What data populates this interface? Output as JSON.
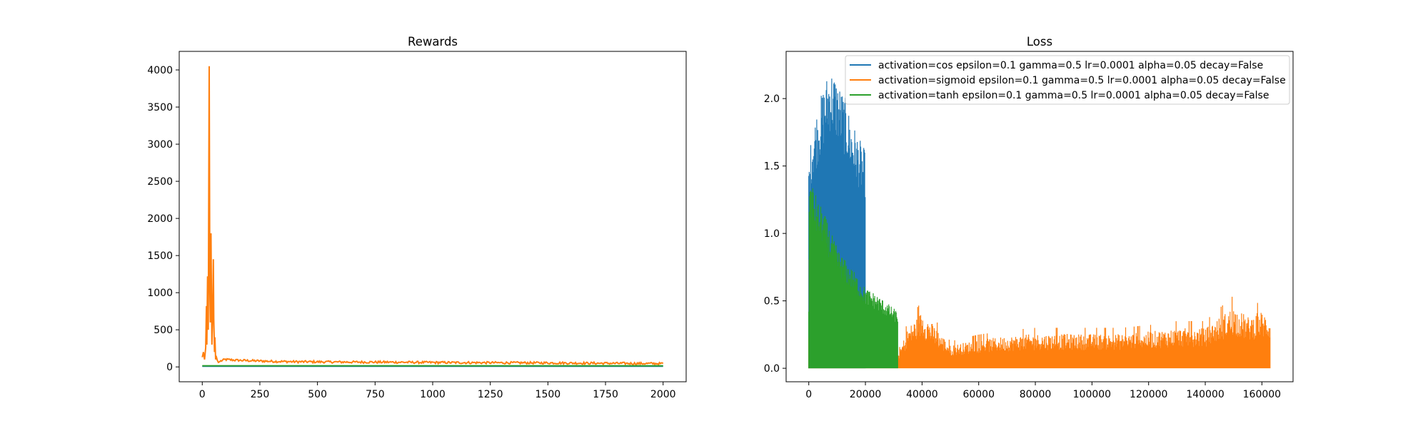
{
  "chart_data": [
    {
      "type": "line",
      "title": "Rewards",
      "xlabel": "",
      "ylabel": "",
      "xlim": [
        -100,
        2100
      ],
      "ylim": [
        -200,
        4250
      ],
      "xticks": [
        0,
        250,
        500,
        750,
        1000,
        1250,
        1500,
        1750,
        2000
      ],
      "yticks": [
        0,
        500,
        1000,
        1500,
        2000,
        2500,
        3000,
        3500,
        4000
      ],
      "grid": false,
      "series": [
        {
          "color": "#1f77b4",
          "values_shape": "flat line near 0 across all episodes",
          "x": [
            0,
            2000
          ],
          "y": [
            10,
            10
          ]
        },
        {
          "color": "#ff7f0e",
          "x": [
            0,
            5,
            10,
            15,
            18,
            20,
            23,
            26,
            30,
            33,
            35,
            38,
            40,
            42,
            45,
            48,
            50,
            53,
            55,
            58,
            60,
            65,
            70,
            80,
            100,
            150,
            200,
            250,
            300,
            400,
            500,
            600,
            700,
            800,
            900,
            1000,
            1100,
            1200,
            1300,
            1400,
            1500,
            1600,
            1700,
            1800,
            1900,
            2000
          ],
          "y": [
            130,
            200,
            100,
            260,
            820,
            300,
            1220,
            500,
            4050,
            1000,
            600,
            1800,
            900,
            300,
            700,
            1450,
            650,
            200,
            400,
            100,
            150,
            90,
            60,
            80,
            100,
            90,
            85,
            80,
            75,
            70,
            68,
            66,
            65,
            64,
            62,
            60,
            58,
            57,
            56,
            55,
            54,
            52,
            50,
            48,
            46,
            45
          ]
        },
        {
          "color": "#2ca02c",
          "x": [
            0,
            2000
          ],
          "y": [
            15,
            15
          ]
        }
      ]
    },
    {
      "type": "line",
      "title": "Loss",
      "xlabel": "",
      "ylabel": "",
      "xlim": [
        -8000,
        171000
      ],
      "ylim": [
        -0.1,
        2.35
      ],
      "xticks": [
        0,
        20000,
        40000,
        60000,
        80000,
        100000,
        120000,
        140000,
        160000
      ],
      "yticks": [
        0.0,
        0.5,
        1.0,
        1.5,
        2.0
      ],
      "grid": false,
      "legend_position": "top-right",
      "series": [
        {
          "name": "activation=cos epsilon=0.1 gamma=0.5 lr=0.0001 alpha=0.05 decay=False",
          "color": "#1f77b4",
          "x_end": 20000,
          "envelope_x": [
            0,
            1000,
            2000,
            4000,
            6000,
            7500,
            9000,
            11000,
            13000,
            15000,
            17000,
            19000,
            20000
          ],
          "envelope_y": [
            1.5,
            1.75,
            1.85,
            2.0,
            2.15,
            2.24,
            2.2,
            2.1,
            2.0,
            1.85,
            1.75,
            1.65,
            1.62
          ]
        },
        {
          "name": "activation=sigmoid epsilon=0.1 gamma=0.5 lr=0.0001 alpha=0.05 decay=False",
          "color": "#ff7f0e",
          "x_end": 163000,
          "envelope_x": [
            0,
            500,
            2000,
            5000,
            10000,
            20000,
            30000,
            32000,
            35000,
            40000,
            50000,
            60000,
            70000,
            80000,
            90000,
            100000,
            110000,
            120000,
            130000,
            140000,
            150000,
            155000,
            160000,
            163000
          ],
          "envelope_y": [
            1.48,
            0.28,
            0.2,
            0.15,
            0.12,
            0.1,
            0.1,
            0.15,
            0.35,
            0.5,
            0.2,
            0.25,
            0.28,
            0.3,
            0.3,
            0.3,
            0.3,
            0.32,
            0.35,
            0.35,
            0.54,
            0.45,
            0.5,
            0.45
          ]
        },
        {
          "name": "activation=tanh epsilon=0.1 gamma=0.5 lr=0.0001 alpha=0.05 decay=False",
          "color": "#2ca02c",
          "x_end": 31500,
          "envelope_x": [
            0,
            1000,
            3000,
            5000,
            8000,
            10000,
            13000,
            16000,
            20000,
            24000,
            28000,
            31500
          ],
          "envelope_y": [
            1.45,
            1.4,
            1.25,
            1.18,
            1.0,
            0.9,
            0.8,
            0.72,
            0.6,
            0.55,
            0.48,
            0.42
          ]
        }
      ]
    }
  ]
}
